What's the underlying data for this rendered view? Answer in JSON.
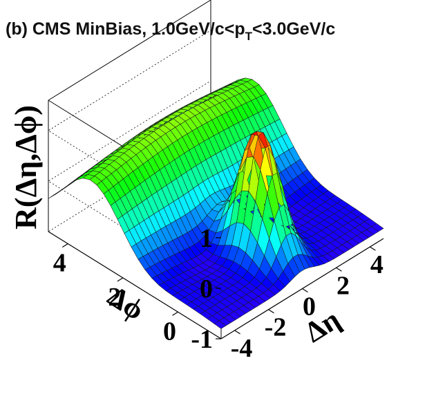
{
  "title": {
    "prefix": "(b) CMS MinBias, 1.0GeV/c<p",
    "sub": "T",
    "suffix": "<3.0GeV/c"
  },
  "chart_data": {
    "type": "surface",
    "zlabel": "R(Δη,Δϕ)",
    "xlabel": "Δη",
    "ylabel": "Δϕ",
    "x_ticks": [
      "-4",
      "-2",
      "0",
      "2",
      "4"
    ],
    "y_ticks": [
      "0",
      "2",
      "4"
    ],
    "z_ticks": [
      "-1",
      "0",
      "1"
    ],
    "xlim": [
      -4.8,
      4.8
    ],
    "ylim": [
      -1.57,
      4.71
    ],
    "zlim": [
      -1,
      1.6
    ],
    "grid": [
      33,
      25
    ],
    "colormap": "rainbow",
    "surface_features": {
      "near_side_peak_height": 1.3,
      "near_side_peak_center": [
        0,
        0
      ],
      "away_side_ridge_height": 1.5,
      "away_side_ridge_dphi": 3.14,
      "baseline": -0.8
    }
  }
}
